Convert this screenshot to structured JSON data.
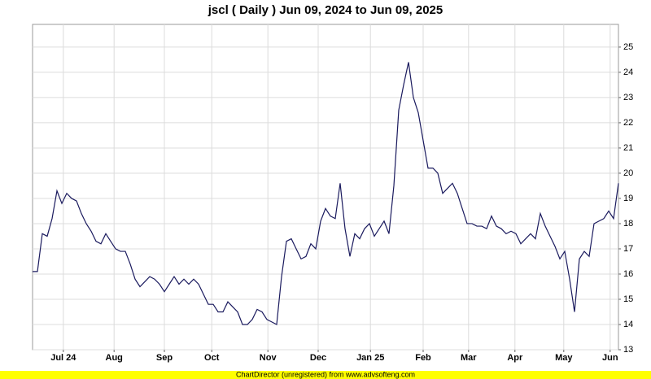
{
  "chart_data": {
    "type": "line",
    "title": "jscl ( Daily ) Jun 09, 2024 to Jun 09, 2025",
    "footer": "ChartDirector (unregistered) from www.advsofteng.com",
    "x": [
      0,
      1,
      2,
      3,
      4,
      5,
      6,
      7,
      8,
      9,
      10,
      11,
      12,
      13,
      14,
      15,
      16,
      17,
      18,
      19,
      20,
      21,
      22,
      23,
      24,
      25,
      26,
      27,
      28,
      29,
      30,
      31,
      32,
      33,
      34,
      35,
      36,
      37,
      38,
      39,
      40,
      41,
      42,
      43,
      44,
      45,
      46,
      47,
      48,
      49,
      50,
      51,
      52,
      53,
      54,
      55,
      56,
      57,
      58,
      59,
      60,
      61,
      62,
      63,
      64,
      65,
      66,
      67,
      68,
      69,
      70,
      71,
      72,
      73,
      74,
      75,
      76,
      77,
      78,
      79,
      80,
      81,
      82,
      83,
      84,
      85,
      86,
      87,
      88,
      89,
      90,
      91,
      92,
      93,
      94,
      95,
      96,
      97,
      98,
      99,
      100,
      101,
      102,
      103,
      104,
      105,
      106,
      107,
      108,
      109,
      110,
      111,
      112,
      113,
      114,
      115,
      116,
      117,
      118,
      119,
      120
    ],
    "series": [
      {
        "name": "jscl",
        "color": "#1a1a5e",
        "values": [
          16.1,
          16.1,
          17.6,
          17.5,
          18.2,
          19.3,
          18.8,
          19.2,
          19.0,
          18.9,
          18.4,
          18.0,
          17.7,
          17.3,
          17.2,
          17.6,
          17.3,
          17.0,
          16.9,
          16.9,
          16.4,
          15.8,
          15.5,
          15.7,
          15.9,
          15.8,
          15.6,
          15.3,
          15.6,
          15.9,
          15.6,
          15.8,
          15.6,
          15.8,
          15.6,
          15.2,
          14.8,
          14.8,
          14.5,
          14.5,
          14.9,
          14.7,
          14.5,
          14.0,
          14.0,
          14.2,
          14.6,
          14.5,
          14.2,
          14.1,
          14.0,
          15.9,
          17.3,
          17.4,
          17.0,
          16.6,
          16.7,
          17.2,
          17.0,
          18.1,
          18.6,
          18.3,
          18.2,
          19.6,
          17.8,
          16.7,
          17.6,
          17.4,
          17.8,
          18.0,
          17.5,
          17.8,
          18.1,
          17.6,
          19.5,
          22.5,
          23.5,
          24.4,
          23.0,
          22.4,
          21.3,
          20.2,
          20.2,
          20.0,
          19.2,
          19.4,
          19.6,
          19.2,
          18.6,
          18.0,
          18.0,
          17.9,
          17.9,
          17.8,
          18.3,
          17.9,
          17.8,
          17.6,
          17.7,
          17.6,
          17.2,
          17.4,
          17.6,
          17.4,
          18.4,
          17.9,
          17.5,
          17.1,
          16.6,
          16.9,
          15.8,
          14.5,
          16.6,
          16.9,
          16.7,
          18.0,
          18.1,
          18.2,
          18.5,
          18.2,
          19.6
        ]
      }
    ],
    "xlim": [
      0,
      120
    ],
    "xticks": [
      {
        "value": 6.3,
        "label": "Jul 24"
      },
      {
        "value": 16.7,
        "label": "Aug"
      },
      {
        "value": 27,
        "label": "Sep"
      },
      {
        "value": 36.7,
        "label": "Oct"
      },
      {
        "value": 48.2,
        "label": "Nov"
      },
      {
        "value": 58.5,
        "label": "Dec"
      },
      {
        "value": 69.2,
        "label": "Jan 25"
      },
      {
        "value": 80,
        "label": "Feb"
      },
      {
        "value": 89.3,
        "label": "Mar"
      },
      {
        "value": 98.8,
        "label": "Apr"
      },
      {
        "value": 108.8,
        "label": "May"
      },
      {
        "value": 118.3,
        "label": "Jun"
      }
    ],
    "ylim": [
      13,
      25.9
    ],
    "yticks": [
      13,
      14,
      15,
      16,
      17,
      18,
      19,
      20,
      21,
      22,
      23,
      24,
      25
    ],
    "grid": true
  }
}
